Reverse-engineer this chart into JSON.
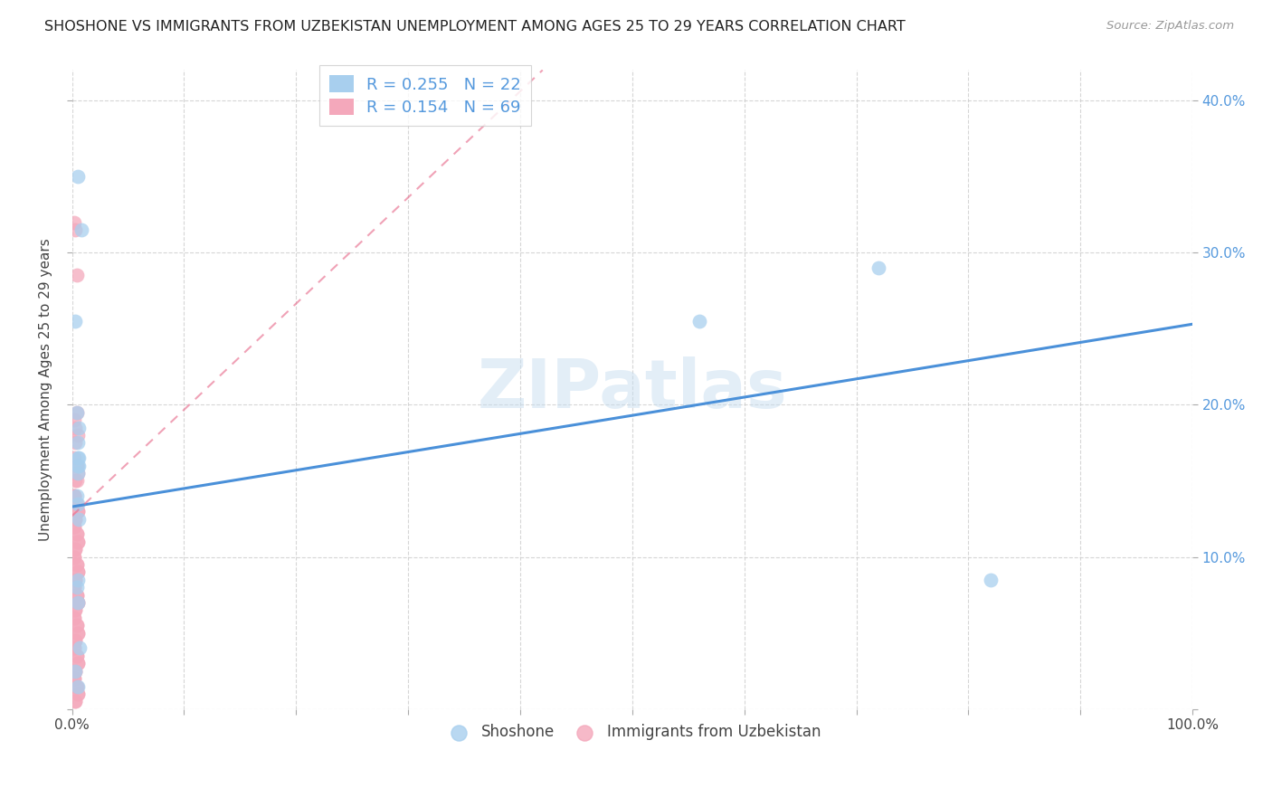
{
  "title": "SHOSHONE VS IMMIGRANTS FROM UZBEKISTAN UNEMPLOYMENT AMONG AGES 25 TO 29 YEARS CORRELATION CHART",
  "source": "Source: ZipAtlas.com",
  "ylabel": "Unemployment Among Ages 25 to 29 years",
  "xlim": [
    0,
    1.0
  ],
  "ylim": [
    0,
    0.42
  ],
  "shoshone_color": "#A8CFEE",
  "uzbekistan_color": "#F4A8BB",
  "shoshone_line_color": "#4A90D9",
  "uzbekistan_line_color": "#E87090",
  "tick_color": "#5599DD",
  "legend_r_color": "#333333",
  "legend_n_color": "#5599DD",
  "watermark": "ZIPatlas",
  "shoshone_x": [
    0.005,
    0.008,
    0.004,
    0.006,
    0.005,
    0.005,
    0.006,
    0.005,
    0.004,
    0.005,
    0.006,
    0.003,
    0.005,
    0.007,
    0.003,
    0.005,
    0.004,
    0.006,
    0.005,
    0.005,
    0.56,
    0.72,
    0.82
  ],
  "shoshone_y": [
    0.35,
    0.315,
    0.195,
    0.185,
    0.175,
    0.165,
    0.16,
    0.155,
    0.14,
    0.135,
    0.125,
    0.255,
    0.07,
    0.04,
    0.025,
    0.015,
    0.08,
    0.165,
    0.085,
    0.16,
    0.255,
    0.29,
    0.085
  ],
  "uzbekistan_x": [
    0.002,
    0.003,
    0.004,
    0.003,
    0.002,
    0.004,
    0.005,
    0.003,
    0.002,
    0.004,
    0.005,
    0.003,
    0.002,
    0.004,
    0.005,
    0.003,
    0.002,
    0.004,
    0.005,
    0.003,
    0.002,
    0.004,
    0.005,
    0.003,
    0.002,
    0.004,
    0.005,
    0.003,
    0.002,
    0.004,
    0.005,
    0.003,
    0.002,
    0.004,
    0.005,
    0.003,
    0.002,
    0.004,
    0.005,
    0.003,
    0.002,
    0.004,
    0.005,
    0.003,
    0.002,
    0.004,
    0.005,
    0.003,
    0.002,
    0.004,
    0.005,
    0.003,
    0.002,
    0.004,
    0.005,
    0.003,
    0.002,
    0.004,
    0.005,
    0.003,
    0.002,
    0.004,
    0.005,
    0.003,
    0.002,
    0.004,
    0.005,
    0.003,
    0.002
  ],
  "uzbekistan_y": [
    0.32,
    0.315,
    0.285,
    0.185,
    0.19,
    0.195,
    0.18,
    0.175,
    0.165,
    0.16,
    0.155,
    0.15,
    0.14,
    0.135,
    0.13,
    0.125,
    0.12,
    0.115,
    0.11,
    0.105,
    0.1,
    0.095,
    0.09,
    0.085,
    0.08,
    0.075,
    0.07,
    0.065,
    0.06,
    0.055,
    0.05,
    0.045,
    0.04,
    0.035,
    0.03,
    0.025,
    0.02,
    0.015,
    0.01,
    0.005,
    0.14,
    0.15,
    0.13,
    0.125,
    0.12,
    0.115,
    0.11,
    0.105,
    0.1,
    0.095,
    0.09,
    0.085,
    0.08,
    0.075,
    0.07,
    0.065,
    0.06,
    0.055,
    0.05,
    0.045,
    0.04,
    0.035,
    0.03,
    0.025,
    0.02,
    0.015,
    0.01,
    0.005,
    0.14
  ],
  "shoshone_trend_x": [
    0.0,
    1.0
  ],
  "shoshone_trend_y": [
    0.133,
    0.253
  ],
  "uzbekistan_trend_x": [
    0.0,
    0.42
  ],
  "uzbekistan_trend_y": [
    0.127,
    0.42
  ]
}
